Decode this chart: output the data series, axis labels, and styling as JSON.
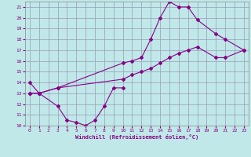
{
  "xlabel": "Windchill (Refroidissement éolien,°C)",
  "xlim": [
    -0.5,
    23.5
  ],
  "ylim": [
    10,
    21.5
  ],
  "xticks": [
    0,
    1,
    2,
    3,
    4,
    5,
    6,
    7,
    8,
    9,
    10,
    11,
    12,
    13,
    14,
    15,
    16,
    17,
    18,
    19,
    20,
    21,
    22,
    23
  ],
  "yticks": [
    10,
    11,
    12,
    13,
    14,
    15,
    16,
    17,
    18,
    19,
    20,
    21
  ],
  "bg_color": "#c0e8e8",
  "grid_color": "#9999bb",
  "line_color": "#880088",
  "series": [
    {
      "x": [
        0,
        1,
        3,
        4,
        5,
        6,
        7,
        8,
        9,
        10
      ],
      "y": [
        14.0,
        13.0,
        11.8,
        10.5,
        10.3,
        10.0,
        10.5,
        11.8,
        13.5,
        13.5
      ]
    },
    {
      "x": [
        0,
        1,
        3,
        10,
        11,
        12,
        13,
        14,
        15,
        16,
        17,
        18,
        20,
        21,
        23
      ],
      "y": [
        13.0,
        13.0,
        13.5,
        15.8,
        16.0,
        16.3,
        18.0,
        20.0,
        21.5,
        21.0,
        21.0,
        19.8,
        18.5,
        18.0,
        17.0
      ]
    },
    {
      "x": [
        0,
        1,
        3,
        10,
        11,
        12,
        13,
        14,
        15,
        16,
        17,
        18,
        20,
        21,
        23
      ],
      "y": [
        13.0,
        13.0,
        13.5,
        14.3,
        14.7,
        15.0,
        15.3,
        15.8,
        16.3,
        16.7,
        17.0,
        17.3,
        16.3,
        16.3,
        17.0
      ]
    }
  ]
}
